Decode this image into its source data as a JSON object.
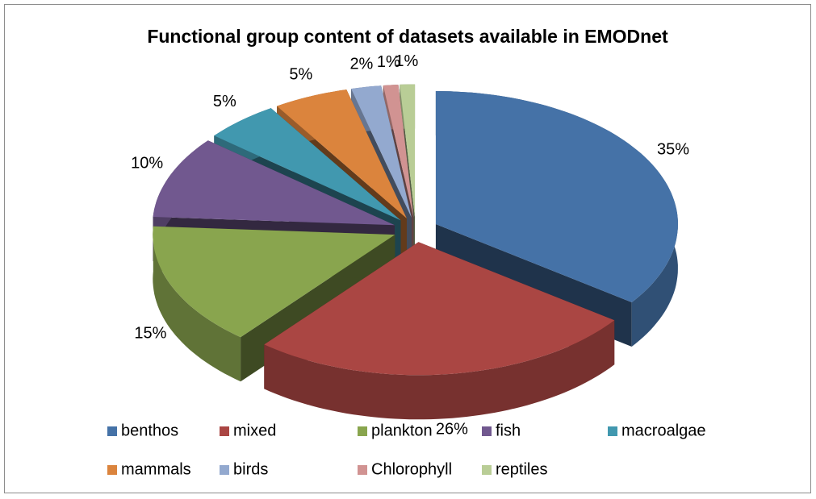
{
  "chart_data": {
    "type": "pie3d",
    "title": "Functional group content of datasets available in EMODnet",
    "categories": [
      "benthos",
      "mixed",
      "plankton",
      "fish",
      "macroalgae",
      "mammals",
      "birds",
      "Chlorophyll",
      "reptiles"
    ],
    "values": [
      35,
      26,
      15,
      10,
      5,
      5,
      2,
      1,
      1
    ],
    "value_labels": [
      "35%",
      "26%",
      "15%",
      "10%",
      "5%",
      "5%",
      "2%",
      "1%",
      "1%"
    ],
    "colors": [
      "#4572a7",
      "#aa4643",
      "#89a54e",
      "#71588f",
      "#4198af",
      "#db843d",
      "#93a9cf",
      "#d19392",
      "#b9cd96"
    ],
    "legend": "bottom"
  }
}
